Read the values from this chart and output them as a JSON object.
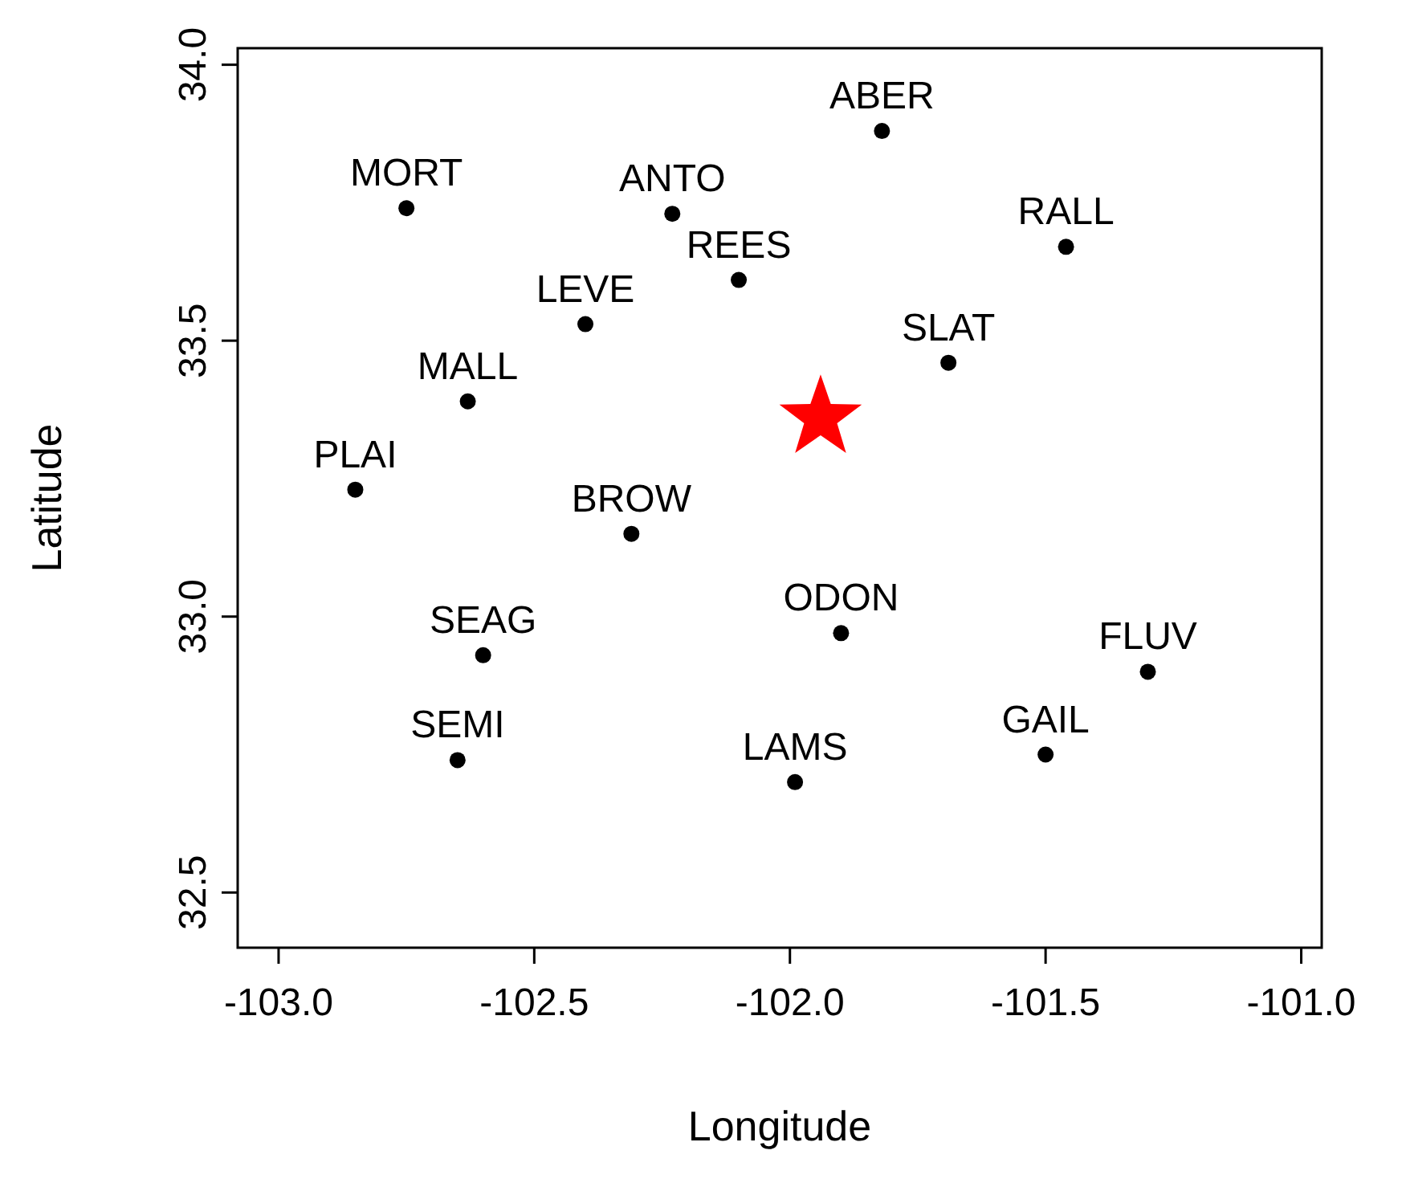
{
  "chart_data": {
    "type": "scatter",
    "xlabel": "Longitude",
    "ylabel": "Latitude",
    "xlim": [
      -103.08,
      -100.96
    ],
    "ylim": [
      32.4,
      34.03
    ],
    "xticks": [
      {
        "value": -103,
        "label": "-103.0"
      },
      {
        "value": -102.5,
        "label": "-102.5"
      },
      {
        "value": -102,
        "label": "-102.0"
      },
      {
        "value": -101.5,
        "label": "-101.5"
      },
      {
        "value": -101,
        "label": "-101.0"
      }
    ],
    "yticks": [
      {
        "value": 32.5,
        "label": "32.5"
      },
      {
        "value": 33,
        "label": "33.0"
      },
      {
        "value": 33.5,
        "label": "33.5"
      },
      {
        "value": 34,
        "label": "34.0"
      }
    ],
    "grid": false,
    "marker": "circle",
    "series": [
      {
        "name": "ABER",
        "color": "#000000",
        "x": [
          -101.82
        ],
        "values": [
          33.88
        ]
      },
      {
        "name": "MORT",
        "color": "#000000",
        "x": [
          -102.75
        ],
        "values": [
          33.74
        ]
      },
      {
        "name": "ANTO",
        "color": "#000000",
        "x": [
          -102.23
        ],
        "values": [
          33.73
        ]
      },
      {
        "name": "RALL",
        "color": "#000000",
        "x": [
          -101.46
        ],
        "values": [
          33.67
        ]
      },
      {
        "name": "REES",
        "color": "#000000",
        "x": [
          -102.1
        ],
        "values": [
          33.61
        ]
      },
      {
        "name": "LEVE",
        "color": "#000000",
        "x": [
          -102.4
        ],
        "values": [
          33.53
        ]
      },
      {
        "name": "SLAT",
        "color": "#000000",
        "x": [
          -101.69
        ],
        "values": [
          33.46
        ]
      },
      {
        "name": "MALL",
        "color": "#000000",
        "x": [
          -102.63
        ],
        "values": [
          33.39
        ]
      },
      {
        "name": "PLAI",
        "color": "#000000",
        "x": [
          -102.85
        ],
        "values": [
          33.23
        ]
      },
      {
        "name": "BROW",
        "color": "#000000",
        "x": [
          -102.31
        ],
        "values": [
          33.15
        ]
      },
      {
        "name": "ODON",
        "color": "#000000",
        "x": [
          -101.9
        ],
        "values": [
          32.97
        ]
      },
      {
        "name": "SEAG",
        "color": "#000000",
        "x": [
          -102.6
        ],
        "values": [
          32.93
        ]
      },
      {
        "name": "FLUV",
        "color": "#000000",
        "x": [
          -101.3
        ],
        "values": [
          32.9
        ]
      },
      {
        "name": "GAIL",
        "color": "#000000",
        "x": [
          -101.5
        ],
        "values": [
          32.75
        ]
      },
      {
        "name": "SEMI",
        "color": "#000000",
        "x": [
          -102.65
        ],
        "values": [
          32.74
        ]
      },
      {
        "name": "LAMS",
        "color": "#000000",
        "x": [
          -101.99
        ],
        "values": [
          32.7
        ]
      },
      {
        "color": "#ff0000",
        "marker": "star",
        "x": [
          -101.94
        ],
        "values": [
          33.36
        ]
      }
    ]
  }
}
